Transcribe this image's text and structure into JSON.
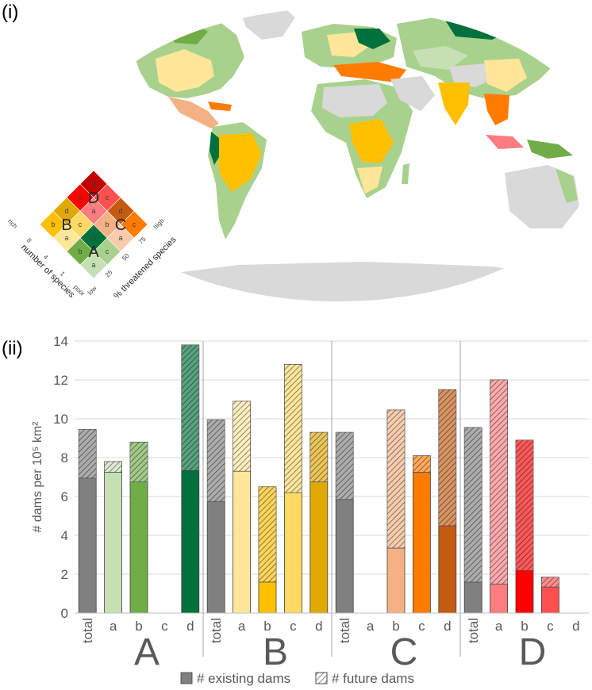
{
  "panels": {
    "map_label": "(i)",
    "chart_label": "(ii)"
  },
  "legend_key": {
    "cells": [
      {
        "id": "A-a",
        "color": "#c6e0b4"
      },
      {
        "id": "A-b",
        "color": "#70ad47"
      },
      {
        "id": "A-c",
        "color": "#a9d18e"
      },
      {
        "id": "A-d",
        "color": "#00703c"
      },
      {
        "id": "B-a",
        "color": "#ffe699"
      },
      {
        "id": "B-b",
        "color": "#ffc000"
      },
      {
        "id": "B-c",
        "color": "#ffd966"
      },
      {
        "id": "B-d",
        "color": "#e0a800"
      },
      {
        "id": "C-a",
        "color": "#f8cbad"
      },
      {
        "id": "C-b",
        "color": "#f4b183"
      },
      {
        "id": "C-c",
        "color": "#ff7c00"
      },
      {
        "id": "C-d",
        "color": "#c55a11"
      },
      {
        "id": "D-a",
        "color": "#ff7c80"
      },
      {
        "id": "D-b",
        "color": "#ff0000"
      },
      {
        "id": "D-c",
        "color": "#ff5050"
      },
      {
        "id": "D-d",
        "color": "#c00000"
      }
    ],
    "cell_letters": [
      "a",
      "b",
      "c",
      "d"
    ],
    "group_letters": [
      "A",
      "B",
      "C",
      "D"
    ],
    "species_axis_label": "number of species",
    "species_ticks": [
      "rich",
      "8",
      "4",
      "1",
      "poor"
    ],
    "threat_axis_label": "% threatened species",
    "threat_ticks": [
      "low",
      "25",
      "50",
      "75",
      "high"
    ]
  },
  "chart_data": {
    "type": "bar",
    "stacked": true,
    "ylabel": "# dams per 10⁵ km²",
    "ylim": [
      0,
      14
    ],
    "yticks": [
      "0",
      "2",
      "4",
      "6",
      "8",
      "10",
      "12",
      "14"
    ],
    "grid": true,
    "legend_position": "bottom",
    "groups": [
      {
        "name": "A",
        "categories": [
          "total",
          "a",
          "b",
          "c",
          "d"
        ],
        "colors": [
          "#808080",
          "#c6e0b4",
          "#70ad47",
          "#a9d18e",
          "#00703c"
        ],
        "existing": [
          6.95,
          7.25,
          6.75,
          0,
          7.35
        ],
        "future": [
          2.5,
          0.55,
          2.05,
          0,
          6.45
        ]
      },
      {
        "name": "B",
        "categories": [
          "total",
          "a",
          "b",
          "c",
          "d"
        ],
        "colors": [
          "#808080",
          "#ffe699",
          "#ffc000",
          "#ffd966",
          "#e0a800"
        ],
        "existing": [
          5.75,
          7.3,
          1.6,
          6.2,
          6.75
        ],
        "future": [
          4.2,
          3.6,
          4.9,
          6.6,
          2.55
        ]
      },
      {
        "name": "C",
        "categories": [
          "total",
          "a",
          "b",
          "c",
          "d"
        ],
        "colors": [
          "#808080",
          "#f8cbad",
          "#f4b183",
          "#ff7c00",
          "#c55a11"
        ],
        "existing": [
          5.85,
          0,
          3.35,
          7.25,
          4.5
        ],
        "future": [
          3.45,
          0,
          7.1,
          0.85,
          7.0
        ]
      },
      {
        "name": "D",
        "categories": [
          "total",
          "a",
          "b",
          "c",
          "d"
        ],
        "colors": [
          "#808080",
          "#ff7c80",
          "#ff0000",
          "#ff5050",
          "#c00000"
        ],
        "existing": [
          1.6,
          1.5,
          2.2,
          1.35,
          0
        ],
        "future": [
          7.95,
          10.5,
          6.7,
          0.5,
          0
        ]
      }
    ],
    "legend": {
      "existing": "# existing dams",
      "future": "# future dams"
    }
  }
}
